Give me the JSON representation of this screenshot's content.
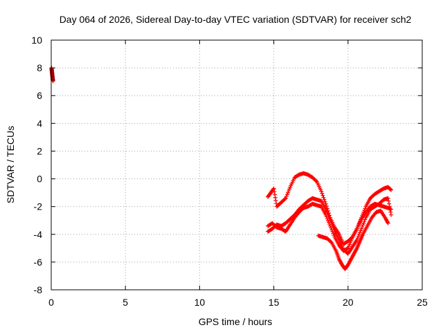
{
  "chart_data": {
    "type": "scatter",
    "title": "Day 064 of 2026, Sidereal Day-to-day VTEC variation (SDTVAR) for receiver sch2",
    "xlabel": "GPS time / hours",
    "ylabel": "SDTVAR / TECUs",
    "xlim": [
      0,
      25
    ],
    "ylim": [
      -8,
      10
    ],
    "x_ticks": [
      0,
      5,
      10,
      15,
      20,
      25
    ],
    "x_tick_labels": [
      "0",
      "5",
      "10",
      "15",
      "20",
      "25"
    ],
    "y_ticks": [
      -8,
      -6,
      -4,
      -2,
      0,
      2,
      4,
      6,
      8,
      10
    ],
    "y_tick_labels": [
      "-8",
      "-6",
      "-4",
      "-2",
      "0",
      "2",
      "4",
      "6",
      "8",
      "10"
    ],
    "grid": true,
    "marker": "plus",
    "series": [
      {
        "name": "start-of-day",
        "color": "#a00000",
        "x": [
          0.02,
          0.04,
          0.06,
          0.08,
          0.1,
          0.12
        ],
        "y": [
          8.0,
          7.8,
          7.6,
          7.4,
          7.2,
          7.05
        ]
      },
      {
        "name": "trace-1",
        "color": "#ff0000",
        "x": [
          14.6,
          14.8,
          15.0,
          15.2,
          15.5,
          15.8,
          16.1,
          16.4,
          16.7,
          17.0,
          17.3,
          17.6,
          17.9,
          18.2,
          18.5,
          18.8,
          19.1,
          19.4,
          19.7,
          20.0,
          20.3,
          20.6,
          20.9,
          21.2,
          21.5,
          21.8,
          22.1,
          22.4,
          22.7,
          22.9
        ],
        "y": [
          -1.3,
          -1.0,
          -0.7,
          -2.0,
          -1.7,
          -1.4,
          -0.6,
          0.1,
          0.3,
          0.4,
          0.3,
          0.1,
          -0.2,
          -0.9,
          -1.8,
          -2.8,
          -3.5,
          -4.0,
          -4.7,
          -4.5,
          -4.2,
          -3.6,
          -2.8,
          -2.0,
          -1.4,
          -1.1,
          -0.9,
          -0.7,
          -0.6,
          -0.8
        ]
      },
      {
        "name": "trace-2",
        "color": "#ff0000",
        "x": [
          14.6,
          14.9,
          15.2,
          15.5,
          15.8,
          16.1,
          16.4,
          16.7,
          17.0,
          17.3,
          17.6,
          17.9,
          18.2,
          18.5,
          18.8,
          19.1,
          19.4,
          19.7,
          20.0,
          20.3,
          20.6,
          20.9,
          21.2,
          21.5,
          21.8,
          22.1,
          22.4,
          22.7,
          22.9
        ],
        "y": [
          -3.8,
          -3.6,
          -3.3,
          -3.4,
          -3.2,
          -2.9,
          -2.6,
          -2.2,
          -1.9,
          -1.6,
          -1.4,
          -1.5,
          -1.6,
          -2.2,
          -3.0,
          -3.8,
          -4.4,
          -5.1,
          -5.4,
          -4.9,
          -4.4,
          -3.6,
          -2.8,
          -2.2,
          -2.0,
          -1.8,
          -1.5,
          -1.4,
          -2.6
        ]
      },
      {
        "name": "trace-3",
        "color": "#ff0000",
        "x": [
          14.6,
          14.9,
          15.2,
          15.5,
          15.8,
          16.1,
          16.4,
          16.7,
          17.0,
          17.3,
          17.6,
          17.9,
          18.2,
          18.5,
          18.8,
          19.1,
          19.4,
          19.7,
          20.0,
          20.3,
          20.6,
          20.9,
          21.2,
          21.5,
          21.8,
          22.1,
          22.4,
          22.7,
          22.9
        ],
        "y": [
          -3.4,
          -3.2,
          -3.5,
          -3.6,
          -3.8,
          -3.3,
          -2.8,
          -2.4,
          -2.1,
          -2.0,
          -1.8,
          -1.9,
          -2.0,
          -2.6,
          -3.4,
          -4.2,
          -4.8,
          -5.2,
          -5.0,
          -4.2,
          -3.6,
          -2.9,
          -2.4,
          -2.0,
          -1.8,
          -1.9,
          -2.0,
          -2.1,
          -2.2
        ]
      },
      {
        "name": "trace-4",
        "color": "#ff0000",
        "x": [
          18.0,
          18.3,
          18.6,
          18.9,
          19.2,
          19.4,
          19.6,
          19.8,
          20.0,
          20.2,
          20.4,
          20.6,
          20.8,
          21.0,
          21.3,
          21.6,
          21.9,
          22.2,
          22.5,
          22.7
        ],
        "y": [
          -4.1,
          -4.2,
          -4.3,
          -4.6,
          -5.2,
          -5.8,
          -6.2,
          -6.5,
          -6.2,
          -5.8,
          -5.4,
          -5.0,
          -4.5,
          -4.0,
          -3.4,
          -2.8,
          -2.4,
          -2.3,
          -2.8,
          -3.2
        ]
      }
    ]
  }
}
